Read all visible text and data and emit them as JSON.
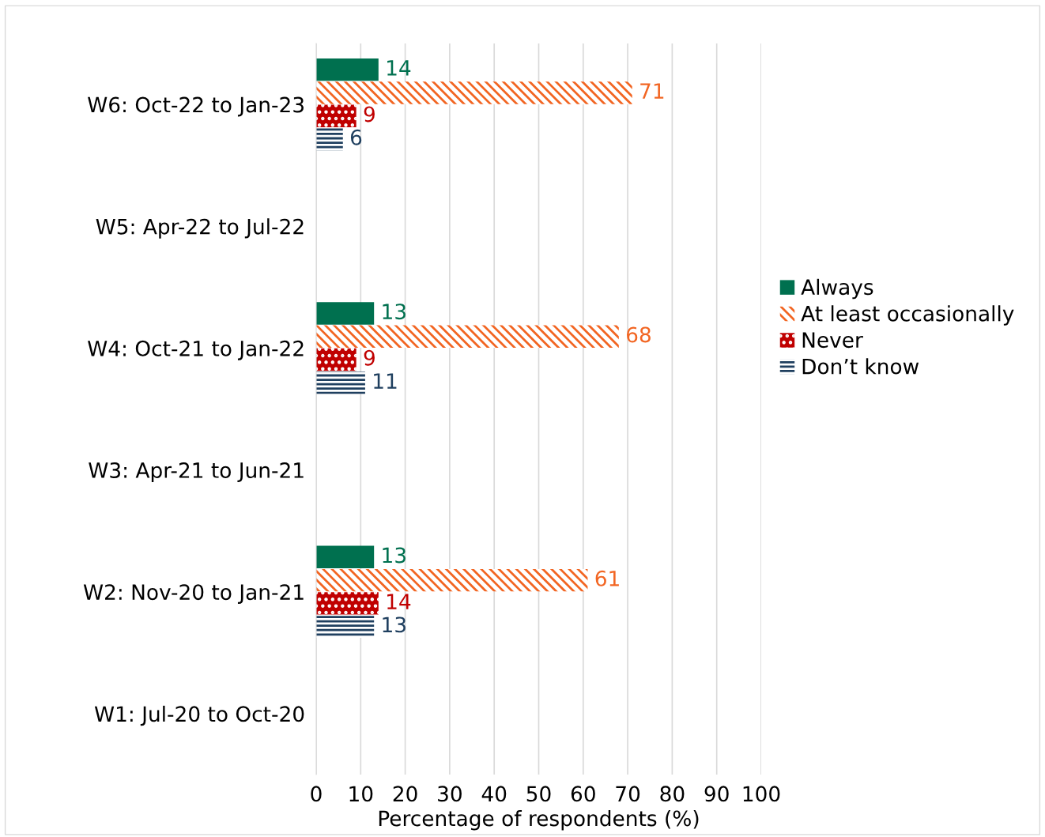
{
  "chart_data": {
    "type": "bar",
    "orientation": "horizontal",
    "categories": [
      "W6: Oct-22 to Jan-23",
      "W5: Apr-22 to Jul-22",
      "W4: Oct-21 to Jan-22",
      "W3: Apr-21 to Jun-21",
      "W2: Nov-20 to Jan-21",
      "W1: Jul-20 to Oct-20"
    ],
    "series": [
      {
        "name": "Always",
        "color": "#00704f",
        "values": [
          14,
          null,
          13,
          null,
          13,
          null
        ]
      },
      {
        "name": "At least occasionally",
        "color": "#f26522",
        "values": [
          71,
          null,
          68,
          null,
          61,
          null
        ]
      },
      {
        "name": "Never",
        "color": "#c00000",
        "values": [
          9,
          null,
          9,
          null,
          14,
          null
        ]
      },
      {
        "name": "Don’t know",
        "color": "#1f3f5f",
        "values": [
          6,
          null,
          11,
          null,
          13,
          null
        ]
      }
    ],
    "xlabel": "Percentage of respondents (%)",
    "xlim": [
      0,
      100
    ],
    "xticks": [
      0,
      10,
      20,
      30,
      40,
      50,
      60,
      70,
      80,
      90,
      100
    ],
    "grid": "x",
    "legend": "right",
    "data_labels": true
  }
}
